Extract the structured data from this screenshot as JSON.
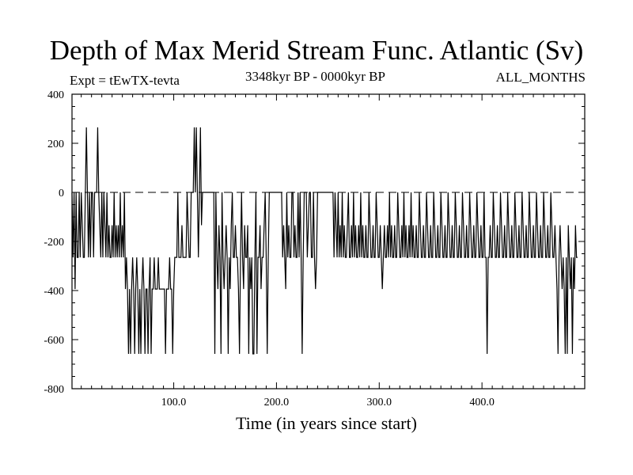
{
  "chart_data": {
    "type": "line",
    "title": "Depth of Max Merid Stream Func. Atlantic (Sv)",
    "subtitle_left": "Expt = tEwTX-tevta",
    "subtitle_center": "3348kyr BP - 0000kyr BP",
    "subtitle_right": "ALL_MONTHS",
    "xlabel": "Time (in years since start)",
    "ylabel": "",
    "xlim": [
      1,
      500
    ],
    "ylim": [
      -800,
      400
    ],
    "x_ticks": [
      100,
      200,
      300,
      400
    ],
    "x_tick_labels": [
      "100.0",
      "200.0",
      "300.0",
      "400.0"
    ],
    "y_ticks": [
      -800,
      -600,
      -400,
      -200,
      0,
      200,
      400
    ],
    "y_tick_labels": [
      "-800",
      "-600",
      "-400",
      "-200",
      "0",
      "200",
      "400"
    ],
    "dashed_zero_line": true,
    "series": [
      {
        "x_start": 1,
        "x_step": 1,
        "values": [
          0,
          -265,
          0,
          -394,
          0,
          -265,
          -265,
          0,
          -265,
          0,
          -134,
          -265,
          -265,
          0,
          265,
          0,
          -265,
          0,
          -265,
          0,
          0,
          -265,
          0,
          0,
          0,
          265,
          0,
          -134,
          -265,
          0,
          -265,
          0,
          -134,
          -265,
          0,
          -265,
          -134,
          -265,
          -265,
          -134,
          -265,
          0,
          -265,
          -134,
          -265,
          -134,
          -265,
          0,
          -265,
          -134,
          -265,
          0,
          -394,
          -265,
          -394,
          -658,
          -394,
          -658,
          -394,
          -265,
          -394,
          -658,
          -394,
          -265,
          -394,
          -658,
          -394,
          -658,
          -394,
          -265,
          -394,
          -658,
          -394,
          -394,
          -658,
          -394,
          -265,
          -658,
          -394,
          -394,
          -265,
          -394,
          -394,
          -394,
          -265,
          -394,
          -394,
          -394,
          -394,
          -394,
          -394,
          -658,
          -394,
          -394,
          -394,
          -265,
          -394,
          -394,
          -658,
          -394,
          -265,
          -265,
          -265,
          0,
          -265,
          -265,
          -265,
          -134,
          -265,
          -265,
          -265,
          -265,
          0,
          -134,
          -265,
          -265,
          0,
          0,
          0,
          265,
          0,
          265,
          0,
          -265,
          0,
          265,
          -134,
          0,
          0,
          0,
          0,
          0,
          0,
          0,
          0,
          0,
          0,
          0,
          0,
          -658,
          0,
          -265,
          -394,
          -134,
          -265,
          -658,
          0,
          -265,
          -394,
          -265,
          -134,
          -265,
          -658,
          -265,
          -394,
          -134,
          0,
          -265,
          -265,
          -134,
          -265,
          -265,
          -394,
          -658,
          -265,
          0,
          -265,
          -394,
          -134,
          -265,
          -265,
          -134,
          -658,
          -265,
          -394,
          -265,
          -658,
          -658,
          -265,
          0,
          -658,
          -265,
          -265,
          -134,
          -394,
          -265,
          -265,
          -134,
          0,
          -265,
          -658,
          -265,
          0,
          0,
          0,
          0,
          0,
          0,
          0,
          0,
          0,
          0,
          0,
          0,
          0,
          -265,
          -134,
          -265,
          -394,
          0,
          -265,
          -134,
          -265,
          -265,
          0,
          0,
          -265,
          -134,
          -265,
          -265,
          0,
          -265,
          0,
          -265,
          -658,
          -265,
          0,
          0,
          0,
          -265,
          -134,
          0,
          0,
          -265,
          -265,
          0,
          -265,
          -394,
          -265,
          0,
          0,
          0,
          0,
          0,
          0,
          0,
          0,
          0,
          0,
          0,
          0,
          0,
          0,
          0,
          0,
          -265,
          0,
          -134,
          -265,
          0,
          -265,
          -134,
          -265,
          0,
          -265,
          -134,
          -265,
          -265,
          -134,
          0,
          -265,
          -265,
          -134,
          -265,
          0,
          -265,
          -134,
          -265,
          -265,
          -134,
          -265,
          0,
          -265,
          -134,
          -265,
          -265,
          -134,
          -265,
          -265,
          0,
          -134,
          -265,
          -265,
          -134,
          -265,
          -265,
          0,
          -134,
          -265,
          -265,
          -134,
          -265,
          -394,
          -265,
          -134,
          -265,
          -265,
          -134,
          -265,
          0,
          -265,
          -134,
          -265,
          -265,
          -134,
          -265,
          -265,
          0,
          -134,
          -265,
          -265,
          -134,
          -265,
          0,
          -265,
          -134,
          -265,
          -265,
          -134,
          -265,
          0,
          -265,
          -134,
          -265,
          -265,
          -134,
          -265,
          -265,
          0,
          -134,
          -265,
          -265,
          -134,
          -265,
          -265,
          0,
          -134,
          -265,
          -265,
          -134,
          -265,
          -265,
          0,
          -134,
          -265,
          -265,
          -134,
          -265,
          -265,
          0,
          -134,
          -265,
          -265,
          -134,
          -265,
          -265,
          0,
          -134,
          -265,
          -265,
          -134,
          -265,
          -265,
          0,
          -134,
          -265,
          -265,
          -134,
          -265,
          -265,
          0,
          -134,
          -265,
          -265,
          -134,
          -265,
          -265,
          0,
          -134,
          -265,
          -265,
          -134,
          -265,
          -265,
          0,
          -134,
          -265,
          -265,
          -134,
          -265,
          -265,
          0,
          -265,
          -265,
          -658,
          -265,
          -265,
          -134,
          -265,
          -265,
          0,
          -134,
          -265,
          -265,
          -134,
          -265,
          -265,
          0,
          -134,
          -265,
          -265,
          -134,
          -265,
          -265,
          0,
          -134,
          -265,
          -265,
          -134,
          -265,
          -265,
          0,
          -134,
          -265,
          -265,
          -134,
          -265,
          -265,
          0,
          -134,
          -265,
          -265,
          -134,
          -265,
          -265,
          0,
          -134,
          -265,
          -265,
          -134,
          -265,
          -265,
          0,
          -134,
          -265,
          -265,
          -134,
          -265,
          -265,
          0,
          -134,
          -265,
          -265,
          -134,
          -265,
          -265,
          0,
          -134,
          -265,
          -265,
          -134,
          -265,
          -394,
          -658,
          -265,
          -134,
          -265,
          -394,
          -265,
          -394,
          -658,
          -265,
          -658,
          -134,
          -265,
          -394,
          -265,
          -658,
          -265,
          -394,
          -134,
          -265,
          -265
        ]
      }
    ]
  }
}
